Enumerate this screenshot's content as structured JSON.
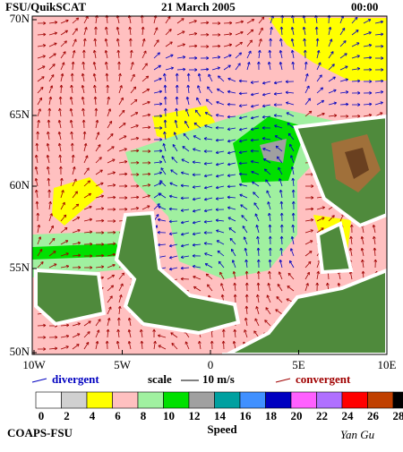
{
  "header": {
    "title": "FSU/QuikSCAT",
    "date": "21 March 2005",
    "time": "00:00"
  },
  "map": {
    "lat_labels": [
      "70N",
      "65N",
      "60N",
      "55N",
      "50N"
    ],
    "lon_labels": [
      "10W",
      "5W",
      "0",
      "5E",
      "10E"
    ]
  },
  "legend": {
    "divergent": "divergent",
    "scale": "scale",
    "scale_value": "10 m/s",
    "convergent": "convergent"
  },
  "colorbar": {
    "ticks": [
      0,
      2,
      4,
      6,
      8,
      10,
      12,
      14,
      16,
      18,
      20,
      22,
      24,
      26,
      28
    ],
    "unit": "m/s",
    "label": "Speed",
    "colors": [
      "#ffffff",
      "#d0d0d0",
      "#ffff00",
      "#ffc0c0",
      "#a0f0a0",
      "#00e000",
      "#a0a0a0",
      "#00a0a0",
      "#4090ff",
      "#0000c0",
      "#ff60ff",
      "#b070ff",
      "#ff0000",
      "#c04000",
      "#000000"
    ]
  },
  "footer": {
    "org": "COAPS-FSU",
    "author": "Yan Gu"
  }
}
